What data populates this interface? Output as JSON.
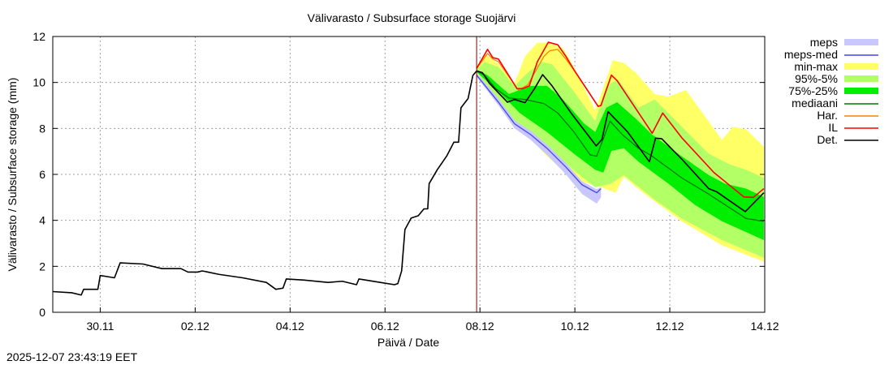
{
  "chart_data": {
    "type": "line",
    "title": "Välivarasto / Subsurface storage  Suojärvi",
    "xlabel": "Päivä / Date",
    "ylabel": "Välivarasto / Subsurface storage (mm)",
    "x_units": "days since 29.11 00:00",
    "xlim": [
      0,
      15
    ],
    "ylim": [
      0,
      12
    ],
    "yticks": [
      0,
      2,
      4,
      6,
      8,
      10,
      12
    ],
    "xticks": [
      {
        "x": 1,
        "label": "30.11"
      },
      {
        "x": 3,
        "label": "02.12"
      },
      {
        "x": 5,
        "label": "04.12"
      },
      {
        "x": 7,
        "label": "06.12"
      },
      {
        "x": 9,
        "label": "08.12"
      },
      {
        "x": 11,
        "label": "10.12"
      },
      {
        "x": 13,
        "label": "12.12"
      },
      {
        "x": 15,
        "label": "14.12"
      }
    ],
    "grid": true,
    "legend_position": "outside-right",
    "forecast_start": 8.93,
    "bands": [
      {
        "name": "min-max",
        "color": "#ffff66",
        "upper": [
          [
            8.93,
            10.67
          ],
          [
            9.1,
            11.26
          ],
          [
            9.39,
            10.79
          ],
          [
            9.73,
            9.97
          ],
          [
            9.95,
            11.14
          ],
          [
            10.21,
            11.73
          ],
          [
            10.41,
            11.73
          ],
          [
            10.75,
            11.5
          ],
          [
            10.98,
            10.67
          ],
          [
            11.43,
            8.79
          ],
          [
            11.8,
            10.97
          ],
          [
            12.03,
            10.85
          ],
          [
            12.28,
            10.43
          ],
          [
            12.68,
            9.5
          ],
          [
            12.97,
            9.38
          ],
          [
            13.34,
            9.67
          ],
          [
            14.1,
            7.5
          ],
          [
            14.33,
            8.08
          ],
          [
            14.61,
            7.96
          ],
          [
            14.98,
            7.2
          ]
        ],
        "lower": [
          [
            8.93,
            10.45
          ],
          [
            9.5,
            8.9
          ],
          [
            9.84,
            8.08
          ],
          [
            10.41,
            6.79
          ],
          [
            10.98,
            5.79
          ],
          [
            11.55,
            5.44
          ],
          [
            11.86,
            5.2
          ],
          [
            12.03,
            5.9
          ],
          [
            12.4,
            5.26
          ],
          [
            13.25,
            3.96
          ],
          [
            14.1,
            2.91
          ],
          [
            14.98,
            2.2
          ]
        ]
      },
      {
        "name": "95%-5%",
        "color": "#b3ff66",
        "upper": [
          [
            8.93,
            10.55
          ],
          [
            9.1,
            10.9
          ],
          [
            9.39,
            10.67
          ],
          [
            9.73,
            9.85
          ],
          [
            9.95,
            10.32
          ],
          [
            10.3,
            10.9
          ],
          [
            10.52,
            10.79
          ],
          [
            10.98,
            9.6
          ],
          [
            11.43,
            8.32
          ],
          [
            11.66,
            9.85
          ],
          [
            11.91,
            10.14
          ],
          [
            12.34,
            8.9
          ],
          [
            12.68,
            9.26
          ],
          [
            12.97,
            8.67
          ],
          [
            13.42,
            7.73
          ],
          [
            13.82,
            6.9
          ],
          [
            14.27,
            6.43
          ],
          [
            14.61,
            6.2
          ],
          [
            14.98,
            5.85
          ]
        ],
        "lower": [
          [
            8.93,
            10.45
          ],
          [
            9.5,
            8.67
          ],
          [
            9.95,
            7.96
          ],
          [
            10.52,
            7.02
          ],
          [
            11.03,
            6.08
          ],
          [
            11.43,
            5.44
          ],
          [
            11.77,
            5.6
          ],
          [
            12.03,
            5.97
          ],
          [
            12.68,
            4.9
          ],
          [
            13.25,
            4.08
          ],
          [
            14.1,
            3.14
          ],
          [
            14.98,
            2.38
          ]
        ]
      },
      {
        "name": "75%-25%",
        "color": "#00ee00",
        "upper": [
          [
            8.93,
            10.55
          ],
          [
            9.16,
            10.32
          ],
          [
            9.61,
            9.5
          ],
          [
            10.07,
            9.85
          ],
          [
            10.41,
            9.85
          ],
          [
            10.75,
            9.26
          ],
          [
            11.2,
            8.2
          ],
          [
            11.43,
            7.85
          ],
          [
            11.66,
            8.9
          ],
          [
            11.89,
            9.14
          ],
          [
            12.28,
            8.43
          ],
          [
            12.63,
            7.73
          ],
          [
            13.25,
            6.79
          ],
          [
            13.82,
            5.97
          ],
          [
            14.16,
            5.6
          ],
          [
            14.61,
            5.38
          ],
          [
            14.98,
            5.02
          ]
        ],
        "lower": [
          [
            8.93,
            10.45
          ],
          [
            9.39,
            9.61
          ],
          [
            9.84,
            8.67
          ],
          [
            10.41,
            7.85
          ],
          [
            10.98,
            6.9
          ],
          [
            11.43,
            6.2
          ],
          [
            11.6,
            6.08
          ],
          [
            11.77,
            7.02
          ],
          [
            12.03,
            7.14
          ],
          [
            12.34,
            6.55
          ],
          [
            12.97,
            5.6
          ],
          [
            13.53,
            4.67
          ],
          [
            14.1,
            3.96
          ],
          [
            14.98,
            3.14
          ]
        ]
      },
      {
        "name": "meps",
        "color": "#c8c8ff",
        "upper": [
          [
            8.93,
            10.4
          ],
          [
            9.39,
            9.3
          ],
          [
            9.73,
            8.35
          ],
          [
            10.07,
            7.9
          ],
          [
            10.41,
            7.3
          ],
          [
            10.81,
            6.5
          ],
          [
            11.15,
            5.7
          ],
          [
            11.46,
            5.35
          ],
          [
            11.55,
            5.45
          ]
        ],
        "lower": [
          [
            8.93,
            10.25
          ],
          [
            9.39,
            9.0
          ],
          [
            9.73,
            8.0
          ],
          [
            10.07,
            7.5
          ],
          [
            10.41,
            6.85
          ],
          [
            10.81,
            6.0
          ],
          [
            11.15,
            5.15
          ],
          [
            11.46,
            4.73
          ],
          [
            11.55,
            5.0
          ]
        ]
      }
    ],
    "series": [
      {
        "name": "meps-med",
        "color": "#4444ee",
        "points": [
          [
            8.93,
            10.32
          ],
          [
            9.39,
            9.14
          ],
          [
            9.73,
            8.2
          ],
          [
            10.07,
            7.73
          ],
          [
            10.41,
            7.14
          ],
          [
            10.81,
            6.32
          ],
          [
            11.15,
            5.55
          ],
          [
            11.46,
            5.2
          ],
          [
            11.55,
            5.38
          ]
        ]
      },
      {
        "name": "mediaani",
        "color": "#007700",
        "points": [
          [
            8.93,
            10.5
          ],
          [
            9.1,
            10.32
          ],
          [
            9.33,
            9.73
          ],
          [
            9.61,
            9.32
          ],
          [
            9.95,
            9.26
          ],
          [
            10.35,
            9.08
          ],
          [
            10.64,
            8.67
          ],
          [
            10.98,
            7.85
          ],
          [
            11.32,
            6.85
          ],
          [
            11.46,
            6.79
          ],
          [
            11.74,
            8.32
          ],
          [
            12.0,
            7.73
          ],
          [
            12.34,
            7.14
          ],
          [
            12.63,
            6.79
          ],
          [
            13.25,
            5.85
          ],
          [
            13.82,
            5.14
          ],
          [
            14.61,
            4.08
          ],
          [
            14.98,
            3.96
          ]
        ]
      },
      {
        "name": "Har.",
        "color": "#ff8000",
        "points": [
          [
            8.93,
            10.61
          ],
          [
            9.16,
            11.26
          ],
          [
            9.27,
            11.02
          ],
          [
            9.39,
            10.9
          ],
          [
            9.81,
            9.67
          ],
          [
            10.01,
            9.9
          ],
          [
            10.35,
            11.14
          ],
          [
            10.47,
            11.38
          ],
          [
            10.64,
            11.44
          ],
          [
            10.81,
            11.02
          ],
          [
            10.98,
            10.55
          ],
          [
            11.49,
            8.96
          ],
          [
            11.55,
            9.0
          ],
          [
            11.77,
            10.32
          ],
          [
            11.89,
            10.08
          ],
          [
            12.63,
            7.79
          ],
          [
            12.85,
            8.67
          ],
          [
            13.25,
            7.6
          ],
          [
            13.93,
            6.08
          ],
          [
            14.56,
            5.02
          ],
          [
            14.76,
            5.0
          ],
          [
            14.98,
            5.38
          ]
        ]
      },
      {
        "name": "IL",
        "color": "#ff0000",
        "points": [
          [
            8.93,
            10.61
          ],
          [
            9.16,
            11.44
          ],
          [
            9.27,
            11.08
          ],
          [
            9.39,
            11.02
          ],
          [
            9.78,
            9.73
          ],
          [
            9.9,
            9.73
          ],
          [
            10.04,
            9.85
          ],
          [
            10.21,
            10.9
          ],
          [
            10.44,
            11.75
          ],
          [
            10.64,
            11.64
          ],
          [
            10.81,
            11.14
          ],
          [
            10.98,
            10.55
          ],
          [
            11.49,
            8.96
          ],
          [
            11.55,
            9.0
          ],
          [
            11.77,
            10.32
          ],
          [
            11.89,
            10.08
          ],
          [
            12.63,
            7.79
          ],
          [
            12.85,
            8.67
          ],
          [
            13.25,
            7.6
          ],
          [
            13.93,
            6.08
          ],
          [
            14.56,
            5.02
          ],
          [
            14.76,
            5.0
          ],
          [
            14.98,
            5.38
          ]
        ]
      },
      {
        "name": "Det.",
        "color": "#000000",
        "points": [
          [
            0,
            0.9
          ],
          [
            0.4,
            0.85
          ],
          [
            0.6,
            0.75
          ],
          [
            0.65,
            1.0
          ],
          [
            0.95,
            1.0
          ],
          [
            1.0,
            1.6
          ],
          [
            1.3,
            1.5
          ],
          [
            1.42,
            2.15
          ],
          [
            1.9,
            2.1
          ],
          [
            2.3,
            1.9
          ],
          [
            2.7,
            1.9
          ],
          [
            2.85,
            1.75
          ],
          [
            3.05,
            1.75
          ],
          [
            3.15,
            1.8
          ],
          [
            3.5,
            1.65
          ],
          [
            4.0,
            1.5
          ],
          [
            4.5,
            1.3
          ],
          [
            4.7,
            1.0
          ],
          [
            4.85,
            1.05
          ],
          [
            4.92,
            1.45
          ],
          [
            5.3,
            1.4
          ],
          [
            5.8,
            1.3
          ],
          [
            6.1,
            1.35
          ],
          [
            6.4,
            1.2
          ],
          [
            6.45,
            1.45
          ],
          [
            6.9,
            1.3
          ],
          [
            7.2,
            1.2
          ],
          [
            7.27,
            1.25
          ],
          [
            7.35,
            1.8
          ],
          [
            7.42,
            3.6
          ],
          [
            7.55,
            4.1
          ],
          [
            7.7,
            4.2
          ],
          [
            7.82,
            4.5
          ],
          [
            7.9,
            4.5
          ],
          [
            7.93,
            5.6
          ],
          [
            8.1,
            6.2
          ],
          [
            8.3,
            6.8
          ],
          [
            8.45,
            7.4
          ],
          [
            8.55,
            7.4
          ],
          [
            8.6,
            8.9
          ],
          [
            8.75,
            9.3
          ],
          [
            8.85,
            10.3
          ],
          [
            8.93,
            10.5
          ],
          [
            9.05,
            10.43
          ],
          [
            9.2,
            9.96
          ],
          [
            9.58,
            9.14
          ],
          [
            9.73,
            9.26
          ],
          [
            9.95,
            9.12
          ],
          [
            10.15,
            9.73
          ],
          [
            10.32,
            10.34
          ],
          [
            10.52,
            9.85
          ],
          [
            10.92,
            8.67
          ],
          [
            11.45,
            7.24
          ],
          [
            11.57,
            7.52
          ],
          [
            11.7,
            8.73
          ],
          [
            12.11,
            7.85
          ],
          [
            12.57,
            6.55
          ],
          [
            12.7,
            7.58
          ],
          [
            12.83,
            7.55
          ],
          [
            13.25,
            6.67
          ],
          [
            13.82,
            5.38
          ],
          [
            13.99,
            5.24
          ],
          [
            14.59,
            4.38
          ],
          [
            14.98,
            5.2
          ]
        ]
      }
    ],
    "legend": [
      {
        "label": "meps",
        "color": "#c8c8ff",
        "kind": "band"
      },
      {
        "label": "meps-med",
        "color": "#4444ee",
        "kind": "line"
      },
      {
        "label": "min-max",
        "color": "#ffff66",
        "kind": "band"
      },
      {
        "label": "95%-5%",
        "color": "#b3ff66",
        "kind": "band"
      },
      {
        "label": "75%-25%",
        "color": "#00ee00",
        "kind": "band"
      },
      {
        "label": "mediaani",
        "color": "#007700",
        "kind": "line"
      },
      {
        "label": "Har.",
        "color": "#ff8000",
        "kind": "line"
      },
      {
        "label": "IL",
        "color": "#ff0000",
        "kind": "line"
      },
      {
        "label": "Det.",
        "color": "#000000",
        "kind": "line"
      }
    ]
  },
  "timestamp": "2025-12-07 23:43:19 EET"
}
